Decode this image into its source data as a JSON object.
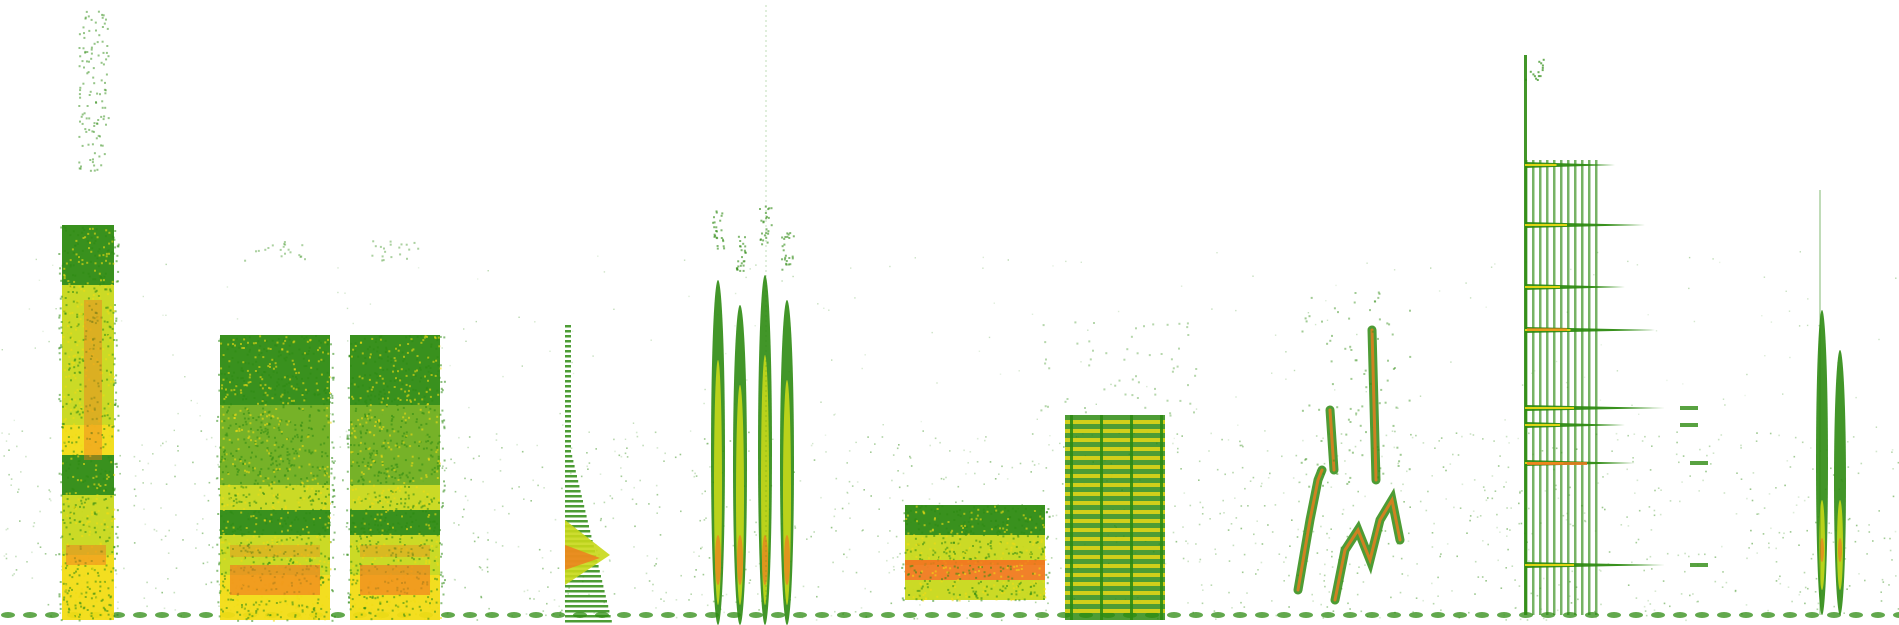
{
  "spectrogram": {
    "background": "#ffffff",
    "palette": {
      "low": "#2e8b12",
      "mid_low": "#6fae1c",
      "mid": "#c8d81a",
      "mid_high": "#f2dc14",
      "high": "#f07a1e",
      "peak": "#e8321e"
    },
    "sound_events": [
      {
        "name": "event-broadband-burst-1",
        "kind": "vertical band",
        "color": "#2e8b12"
      },
      {
        "name": "event-block-2",
        "kind": "wide block",
        "color": "#2e8b12"
      },
      {
        "name": "event-block-3",
        "kind": "wide block",
        "color": "#2e8b12"
      },
      {
        "name": "event-triangle-chirp",
        "kind": "narrow taper",
        "color": "#2e8b12"
      },
      {
        "name": "event-clicks-group",
        "kind": "vertical strokes",
        "color": "#2e8b12"
      },
      {
        "name": "event-harmonic-stack",
        "kind": "harmonic bars",
        "color": "#2e8b12"
      },
      {
        "name": "event-frequency-sweeps",
        "kind": "zigzag sweeps",
        "color": "#2e8b12"
      },
      {
        "name": "event-harmonic-comb",
        "kind": "harmonic comb",
        "color": "#2e8b12"
      },
      {
        "name": "event-final-strokes",
        "kind": "vertical strokes",
        "color": "#2e8b12"
      }
    ]
  }
}
